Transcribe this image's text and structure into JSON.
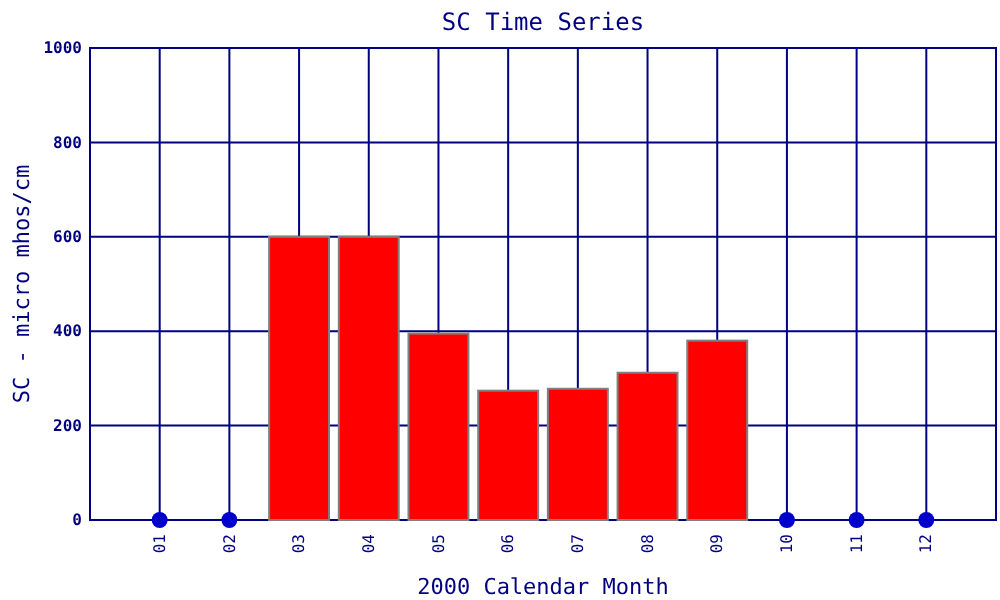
{
  "chart_data": {
    "type": "bar",
    "title": "SC Time Series",
    "xlabel": "2000 Calendar Month",
    "ylabel": "SC - micro mhos/cm",
    "categories": [
      "01",
      "02",
      "03",
      "04",
      "05",
      "06",
      "07",
      "08",
      "09",
      "10",
      "11",
      "12"
    ],
    "series": [
      {
        "color": "#ff0000",
        "values": [
          null,
          null,
          600,
          600,
          395,
          274,
          278,
          312,
          380,
          null,
          null,
          null
        ]
      },
      {
        "type": "scatter",
        "color": "#0000cc",
        "x": [
          "01",
          "02",
          "10",
          "11",
          "12"
        ],
        "values": [
          0,
          0,
          0,
          0,
          0
        ]
      }
    ],
    "ylim": [
      0,
      1000
    ],
    "yticks": [
      0,
      200,
      400,
      600,
      800,
      1000
    ],
    "grid": true,
    "marker": "circle"
  }
}
